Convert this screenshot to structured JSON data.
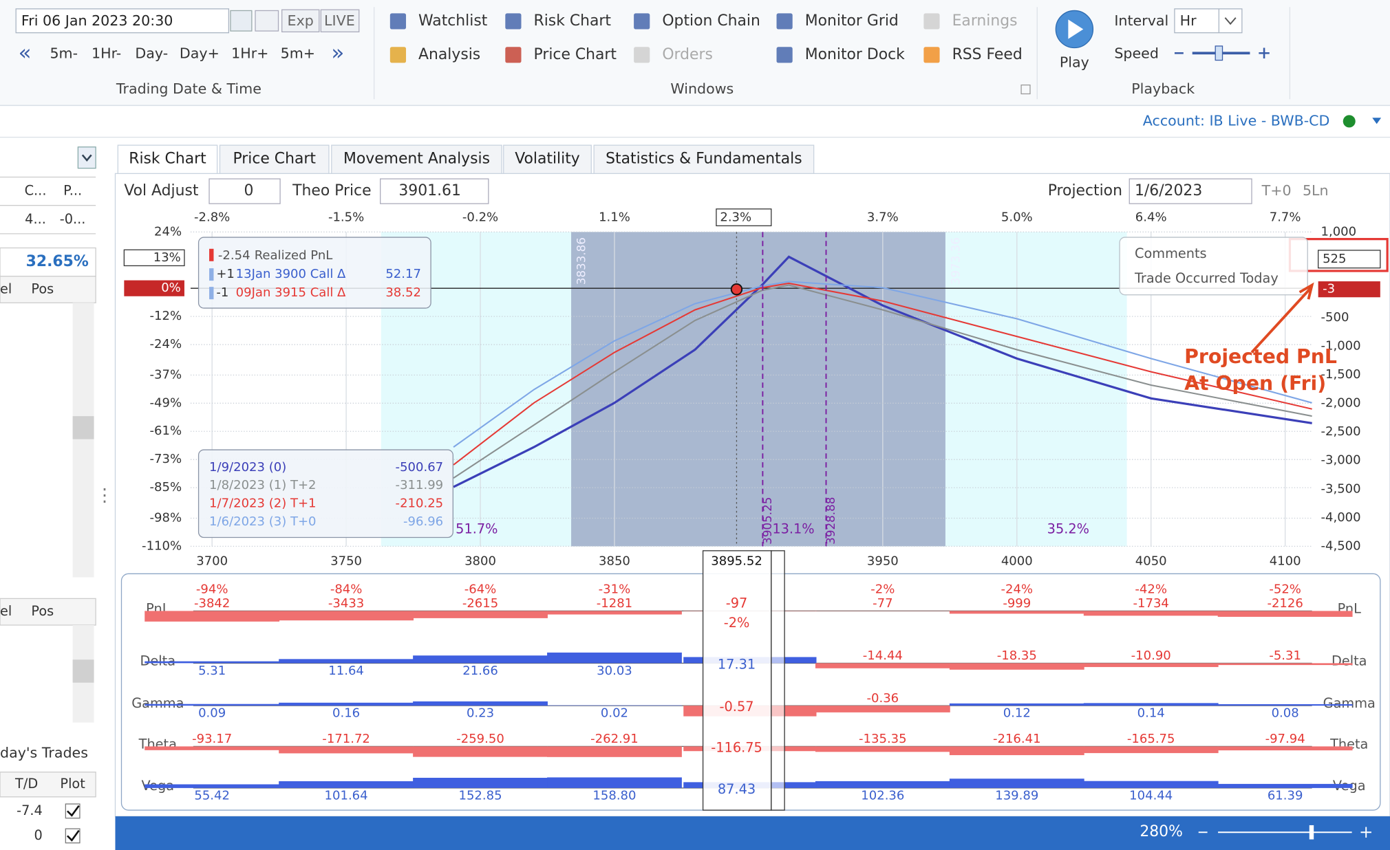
{
  "ribbon": {
    "datetime": "Fri 06 Jan 2023 20:30",
    "buttons": [
      "Exp",
      "LIVE"
    ],
    "steps": [
      "5m-",
      "1Hr-",
      "Day-",
      "Day+",
      "1Hr+",
      "5m+"
    ],
    "group_date": "Trading Date & Time",
    "windows": [
      {
        "label": "Watchlist",
        "enabled": true
      },
      {
        "label": "Analysis",
        "enabled": true
      },
      {
        "label": "Risk Chart",
        "enabled": true
      },
      {
        "label": "Price Chart",
        "enabled": true
      },
      {
        "label": "Option Chain",
        "enabled": true
      },
      {
        "label": "Orders",
        "enabled": false
      },
      {
        "label": "Monitor Grid",
        "enabled": true
      },
      {
        "label": "Monitor Dock",
        "enabled": true
      },
      {
        "label": "Earnings",
        "enabled": false
      },
      {
        "label": "RSS Feed",
        "enabled": true
      }
    ],
    "group_windows": "Windows",
    "play": "Play",
    "interval_label": "Interval",
    "interval": "Hr",
    "speed_label": "Speed",
    "group_playback": "Playback"
  },
  "account": "Account: IB Live - BWB-CD",
  "left_panel": {
    "header1": [
      "C...",
      "P..."
    ],
    "row1": [
      "4...",
      "-0..."
    ],
    "iv": "32.65%",
    "header2": [
      "el",
      "Pos"
    ],
    "header3": [
      "el",
      "Pos"
    ],
    "trades_title": "day's Trades",
    "trades_header": [
      "T/D",
      "Plot"
    ],
    "trades": [
      {
        "td": "-7.4",
        "plot": true
      },
      {
        "td": "0",
        "plot": true
      }
    ]
  },
  "tabs": [
    "Risk Chart",
    "Price Chart",
    "Movement Analysis",
    "Volatility",
    "Statistics & Fundamentals"
  ],
  "active_tab": 0,
  "controls": {
    "vol_adjust_label": "Vol Adjust",
    "vol_adjust": "0",
    "theo_label": "Theo Price",
    "theo": "3901.61",
    "projection_label": "Projection",
    "projection": "1/6/2023",
    "buttons": [
      "T+0",
      "5Ln"
    ]
  },
  "chart": {
    "xlim": [
      3692,
      4110
    ],
    "ylim_left": [
      -110,
      24
    ],
    "ylim_right": [
      -4500,
      1000
    ],
    "xticks": [
      3700,
      3750,
      3800,
      3850,
      3950,
      4000,
      4050,
      4100
    ],
    "top_ticks": [
      {
        "value": 3700,
        "label": "-2.8%"
      },
      {
        "value": 3750,
        "label": "-1.5%"
      },
      {
        "value": 3800,
        "label": "-0.2%"
      },
      {
        "value": 3850,
        "label": "1.1%"
      },
      {
        "value": 3950,
        "label": "3.7%"
      },
      {
        "value": 4000,
        "label": "5.0%"
      },
      {
        "value": 4050,
        "label": "6.4%"
      },
      {
        "value": 4100,
        "label": "7.7%"
      }
    ],
    "left_ticks": [
      {
        "value": 24,
        "label": "24%"
      },
      {
        "value": -12,
        "label": "-12%"
      },
      {
        "value": -24,
        "label": "-24%"
      },
      {
        "value": -37,
        "label": "-37%"
      },
      {
        "value": -49,
        "label": "-49%"
      },
      {
        "value": -61,
        "label": "-61%"
      },
      {
        "value": -73,
        "label": "-73%"
      },
      {
        "value": -85,
        "label": "-85%"
      },
      {
        "value": -98,
        "label": "-98%"
      },
      {
        "value": -110,
        "label": "-110%"
      }
    ],
    "right_ticks": [
      {
        "value": 1000,
        "label": "1,000"
      },
      -500,
      {
        "value": -1000,
        "label": "-1,000"
      },
      {
        "value": -1500,
        "label": "-1,500"
      },
      {
        "value": -2000,
        "label": "-2,000"
      },
      {
        "value": -2500,
        "label": "-2,500"
      },
      {
        "value": -3000,
        "label": "-3,000"
      },
      {
        "value": -3500,
        "label": "-3,500"
      },
      {
        "value": -4000,
        "label": "-4,000"
      },
      {
        "value": -4500,
        "label": "-4,500"
      }
    ],
    "outer_range": [
      3763,
      4041
    ],
    "inner_range": [
      3833.86,
      3973.36
    ],
    "breakevens": [
      3905.25,
      3928.88
    ],
    "probabilities": [
      "51.7%",
      "13.1%",
      "35.2%"
    ],
    "realized": {
      "value": -2.54,
      "label": "Realized PnL",
      "legs": [
        {
          "qty": "+1",
          "name": "13Jan 3900 Call Δ",
          "delta": 52.17,
          "color": "#3a5fcd"
        },
        {
          "qty": "-1",
          "name": "09Jan 3915 Call Δ",
          "delta": 38.52,
          "color": "#e53935"
        }
      ]
    },
    "x": [
      3790,
      3820,
      3850,
      3880,
      3905,
      3915,
      3950,
      4000,
      4050,
      4110
    ],
    "series": [
      {
        "name": "1/9/2023 (0)",
        "color": "#3b3fb8",
        "value": -500.67,
        "values": [
          -3461,
          -2764,
          -1990,
          -1060,
          71,
          566,
          -286,
          -1215,
          -1912,
          -2346
        ]
      },
      {
        "name": "1/8/2023 (1) T+2",
        "color": "#8a8f8f",
        "value": -311.99,
        "values": [
          -3306,
          -2377,
          -1447,
          -549,
          -22,
          71,
          -363,
          -1060,
          -1680,
          -2222
        ]
      },
      {
        "name": "1/7/2023 (2) T+1",
        "color": "#e53935",
        "value": -210.25,
        "values": [
          -3074,
          -1990,
          -1107,
          -363,
          24,
          102,
          -208,
          -828,
          -1447,
          -2098
        ]
      },
      {
        "name": "1/6/2023 (3) T+0",
        "color": "#7ea6e6",
        "value": -96.96,
        "values": [
          -2764,
          -1757,
          -905,
          -255,
          55,
          133,
          24,
          -518,
          -1215,
          -1990
        ]
      }
    ],
    "comments": {
      "title": "Comments",
      "text": "Trade Occurred Today",
      "value": 525,
      "percent": {
        "value": 13,
        "label": "13%"
      }
    },
    "current": {
      "price": 3895.52,
      "pnl": -3,
      "top_label": "2.3%",
      "percent": {
        "value": 0,
        "label": "0%"
      }
    },
    "annotation": [
      "Projected PnL",
      "At Open (Fri)"
    ]
  },
  "greeks": {
    "rows": [
      {
        "name": "PnL",
        "values": [
          -3842,
          -3433,
          -2615,
          -1281,
          -77,
          -999,
          -1734,
          -2126
        ],
        "percent_labels": [
          "-94%",
          "-84%",
          "-64%",
          "-31%",
          "-2%",
          "-24%",
          "-42%",
          "-52%"
        ],
        "cursor": -97,
        "cursor_percent": "-2%"
      },
      {
        "name": "Delta",
        "values": [
          5.31,
          11.64,
          21.66,
          30.03,
          -14.44,
          -18.35,
          -10.9,
          -5.31
        ],
        "value_labels": [
          "5.31",
          "11.64",
          "21.66",
          "30.03",
          "-14.44",
          "-18.35",
          "-10.90",
          "-5.31"
        ],
        "cursor": 17.31
      },
      {
        "name": "Gamma",
        "values": [
          0.09,
          0.16,
          0.23,
          0.02,
          -0.36,
          0.12,
          0.14,
          0.08
        ],
        "cursor": -0.57
      },
      {
        "name": "Theta",
        "values": [
          -93.17,
          -171.72,
          -259.5,
          -262.91,
          -135.35,
          -216.41,
          -165.75,
          -97.94
        ],
        "value_labels": [
          "-93.17",
          "-171.72",
          "-259.50",
          "-262.91",
          "-135.35",
          "-216.41",
          "-165.75",
          "-97.94"
        ],
        "cursor": -116.75
      },
      {
        "name": "Vega",
        "values": [
          55.42,
          101.64,
          152.85,
          158.8,
          102.36,
          139.89,
          104.44,
          61.39
        ],
        "value_labels": [
          "55.42",
          "101.64",
          "152.85",
          "158.80",
          "102.36",
          "139.89",
          "104.44",
          "61.39"
        ],
        "cursor": 87.43
      }
    ]
  },
  "status": {
    "zoom": "280%"
  }
}
